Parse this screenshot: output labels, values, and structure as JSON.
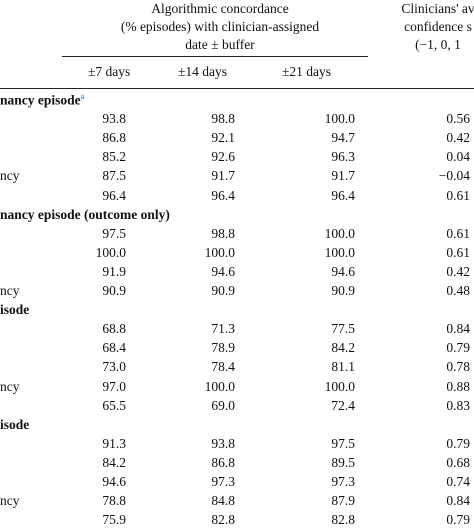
{
  "header": {
    "concordance_title_line1": "Algorithmic concordance",
    "concordance_title_line2": "(% episodes) with clinician-assigned",
    "concordance_title_line3": "date ± buffer",
    "confidence_title_line1": "Clinicians' av",
    "confidence_title_line2": "confidence s",
    "confidence_title_line3": "(−1, 0, 1"
  },
  "columns": [
    "±7 days",
    "±14 days",
    "±21 days"
  ],
  "sections": [
    {
      "title": "nancy episode",
      "footnote": "a",
      "rows": [
        {
          "label": "",
          "values": [
            "93.8",
            "98.8",
            "100.0",
            "0.56"
          ]
        },
        {
          "label": "",
          "values": [
            "86.8",
            "92.1",
            "94.7",
            "0.42"
          ]
        },
        {
          "label": "",
          "values": [
            "85.2",
            "92.6",
            "96.3",
            "0.04"
          ]
        },
        {
          "label": "ncy",
          "values": [
            "87.5",
            "91.7",
            "91.7",
            "−0.04"
          ]
        },
        {
          "label": "",
          "values": [
            "96.4",
            "96.4",
            "96.4",
            "0.61"
          ]
        }
      ]
    },
    {
      "title": "nancy episode (outcome only)",
      "footnote": "",
      "rows": [
        {
          "label": "",
          "values": [
            "97.5",
            "98.8",
            "100.0",
            "0.61"
          ]
        },
        {
          "label": "",
          "values": [
            "100.0",
            "100.0",
            "100.0",
            "0.61"
          ]
        },
        {
          "label": "",
          "values": [
            "91.9",
            "94.6",
            "94.6",
            "0.42"
          ]
        },
        {
          "label": "ncy",
          "values": [
            "90.9",
            "90.9",
            "90.9",
            "0.48"
          ]
        }
      ]
    },
    {
      "title": "isode",
      "footnote": "",
      "rows": [
        {
          "label": "",
          "values": [
            "68.8",
            "71.3",
            "77.5",
            "0.84"
          ]
        },
        {
          "label": "",
          "values": [
            "68.4",
            "78.9",
            "84.2",
            "0.79"
          ]
        },
        {
          "label": "",
          "values": [
            "73.0",
            "78.4",
            "81.1",
            "0.78"
          ]
        },
        {
          "label": "ncy",
          "values": [
            "97.0",
            "100.0",
            "100.0",
            "0.88"
          ]
        },
        {
          "label": "",
          "values": [
            "65.5",
            "69.0",
            "72.4",
            "0.83"
          ]
        }
      ]
    },
    {
      "title": "isode",
      "footnote": "",
      "rows": [
        {
          "label": "",
          "values": [
            "91.3",
            "93.8",
            "97.5",
            "0.79"
          ]
        },
        {
          "label": "",
          "values": [
            "84.2",
            "86.8",
            "89.5",
            "0.68"
          ]
        },
        {
          "label": "",
          "values": [
            "94.6",
            "97.3",
            "97.3",
            "0.74"
          ]
        },
        {
          "label": "ncy",
          "values": [
            "78.8",
            "84.8",
            "87.9",
            "0.84"
          ]
        },
        {
          "label": "",
          "values": [
            "75.9",
            "82.8",
            "82.8",
            "0.79"
          ]
        }
      ]
    }
  ]
}
